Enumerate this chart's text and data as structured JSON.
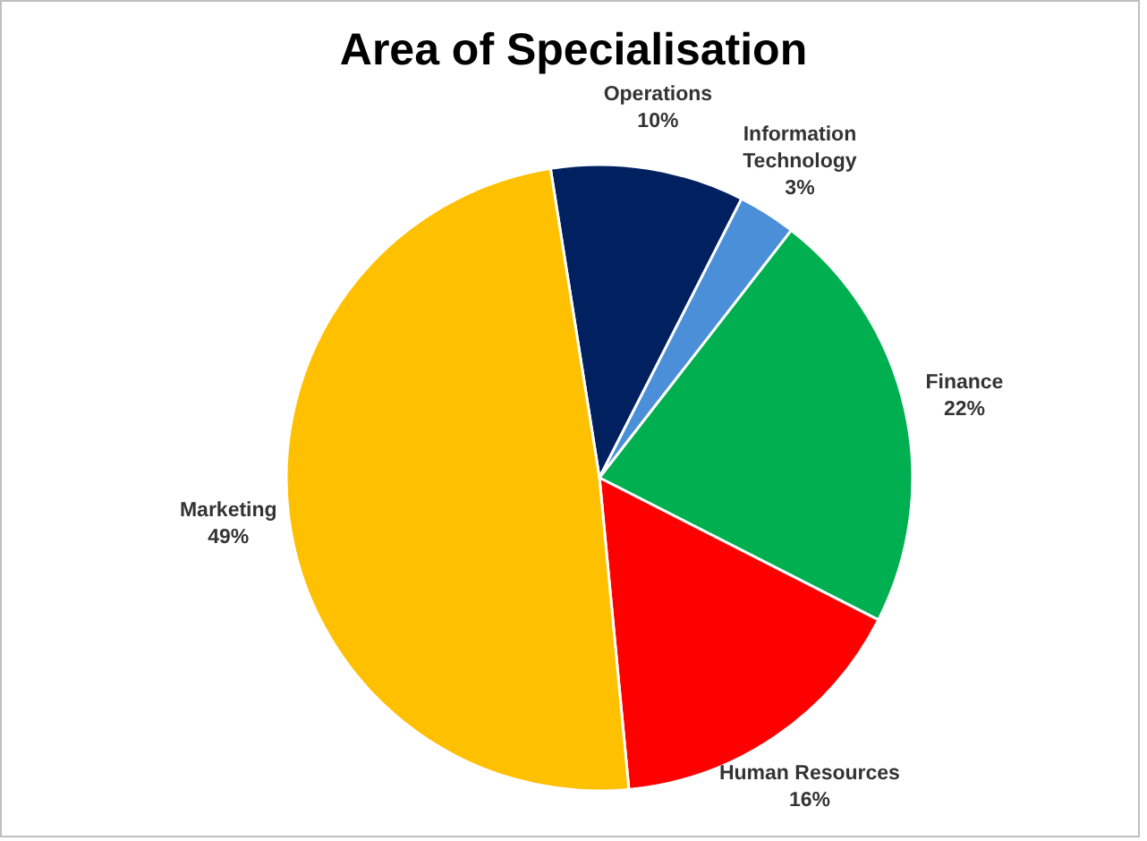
{
  "chart_data": {
    "type": "pie",
    "title": "Area of Specialisation",
    "categories": [
      "Operations",
      "Information Technology",
      "Finance",
      "Human Resources",
      "Marketing"
    ],
    "values": [
      10,
      3,
      22,
      16,
      49
    ],
    "value_labels": [
      "10%",
      "3%",
      "22%",
      "16%",
      "49%"
    ],
    "colors": [
      "#002060",
      "#4a8fd8",
      "#00b050",
      "#ff0000",
      "#ffc000"
    ]
  }
}
